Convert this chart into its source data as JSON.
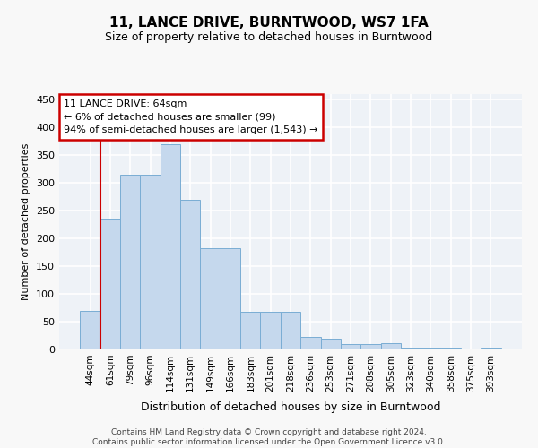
{
  "title": "11, LANCE DRIVE, BURNTWOOD, WS7 1FA",
  "subtitle": "Size of property relative to detached houses in Burntwood",
  "xlabel": "Distribution of detached houses by size in Burntwood",
  "ylabel": "Number of detached properties",
  "categories": [
    "44sqm",
    "61sqm",
    "79sqm",
    "96sqm",
    "114sqm",
    "131sqm",
    "149sqm",
    "166sqm",
    "183sqm",
    "201sqm",
    "218sqm",
    "236sqm",
    "253sqm",
    "271sqm",
    "288sqm",
    "305sqm",
    "323sqm",
    "340sqm",
    "358sqm",
    "375sqm",
    "393sqm"
  ],
  "values": [
    70,
    235,
    315,
    315,
    370,
    270,
    183,
    183,
    68,
    68,
    68,
    22,
    20,
    10,
    10,
    12,
    3,
    3,
    3,
    0,
    3
  ],
  "bar_color": "#c5d8ed",
  "bar_edge_color": "#7aadd4",
  "vline_color": "#cc0000",
  "vline_x_index": 1,
  "annotation_line1": "11 LANCE DRIVE: 64sqm",
  "annotation_line2": "← 6% of detached houses are smaller (99)",
  "annotation_line3": "94% of semi-detached houses are larger (1,543) →",
  "annotation_box_color": "#ffffff",
  "annotation_box_edge": "#cc0000",
  "ylim": [
    0,
    460
  ],
  "yticks": [
    0,
    50,
    100,
    150,
    200,
    250,
    300,
    350,
    400,
    450
  ],
  "bg_color": "#eef2f7",
  "grid_color": "#ffffff",
  "fig_bg": "#f8f8f8",
  "footer": "Contains HM Land Registry data © Crown copyright and database right 2024.\nContains public sector information licensed under the Open Government Licence v3.0."
}
